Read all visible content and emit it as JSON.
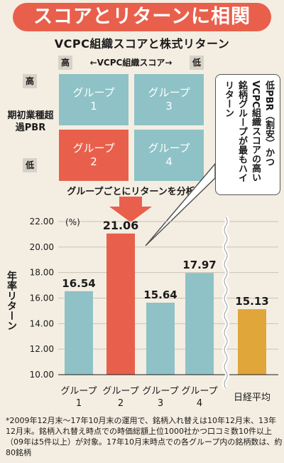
{
  "banner": "スコアとリターンに相関",
  "subtitle": "VCPC組織スコアと株式リターン",
  "matrix": {
    "axis_high": "高",
    "axis_low": "低",
    "axis_label": "←VCPC組織スコア→",
    "v_high": "高",
    "v_low": "低",
    "v_label": "期初業種超過PBR",
    "groups": [
      {
        "name": "グループ",
        "num": "1"
      },
      {
        "name": "グループ",
        "num": "3"
      },
      {
        "name": "グループ",
        "num": "2"
      },
      {
        "name": "グループ",
        "num": "4"
      }
    ]
  },
  "callout": "低PBR（割安）かつVCPC組織スコアの高い銘柄グループが最もハイリターン",
  "analysis_label": "グループごとにリターンを分析",
  "chart_data": {
    "type": "bar",
    "unit": "(%)",
    "ylabel": "年率リターン",
    "ylim": [
      10,
      22
    ],
    "yticks": [
      "10.00",
      "12.00",
      "14.00",
      "16.00",
      "18.00",
      "20.00",
      "22.00"
    ],
    "categories": [
      {
        "name": "グループ",
        "num": "1"
      },
      {
        "name": "グループ",
        "num": "2"
      },
      {
        "name": "グループ",
        "num": "3"
      },
      {
        "name": "グループ",
        "num": "4"
      },
      {
        "name": "日経平均",
        "num": ""
      }
    ],
    "values": [
      16.54,
      21.06,
      15.64,
      17.97,
      15.13
    ],
    "labels": [
      "16.54",
      "21.06",
      "15.64",
      "17.97",
      "15.13"
    ],
    "colors": {
      "normal": "#8ec2c6",
      "highlight": "#e8604c",
      "benchmark": "#e0a63a"
    },
    "highlight_index": 1,
    "benchmark_index": 4
  },
  "footnote": "*2009年12月末～17年10月末の運用で、銘柄入れ替えは10年12月末、13年12月末。銘柄入れ替え時点での時価総額上位1000社かつ口コミ数10件以上（09年は5件以上）が対象。17年10月末時点での各グループ内の銘柄数は、約80銘柄"
}
